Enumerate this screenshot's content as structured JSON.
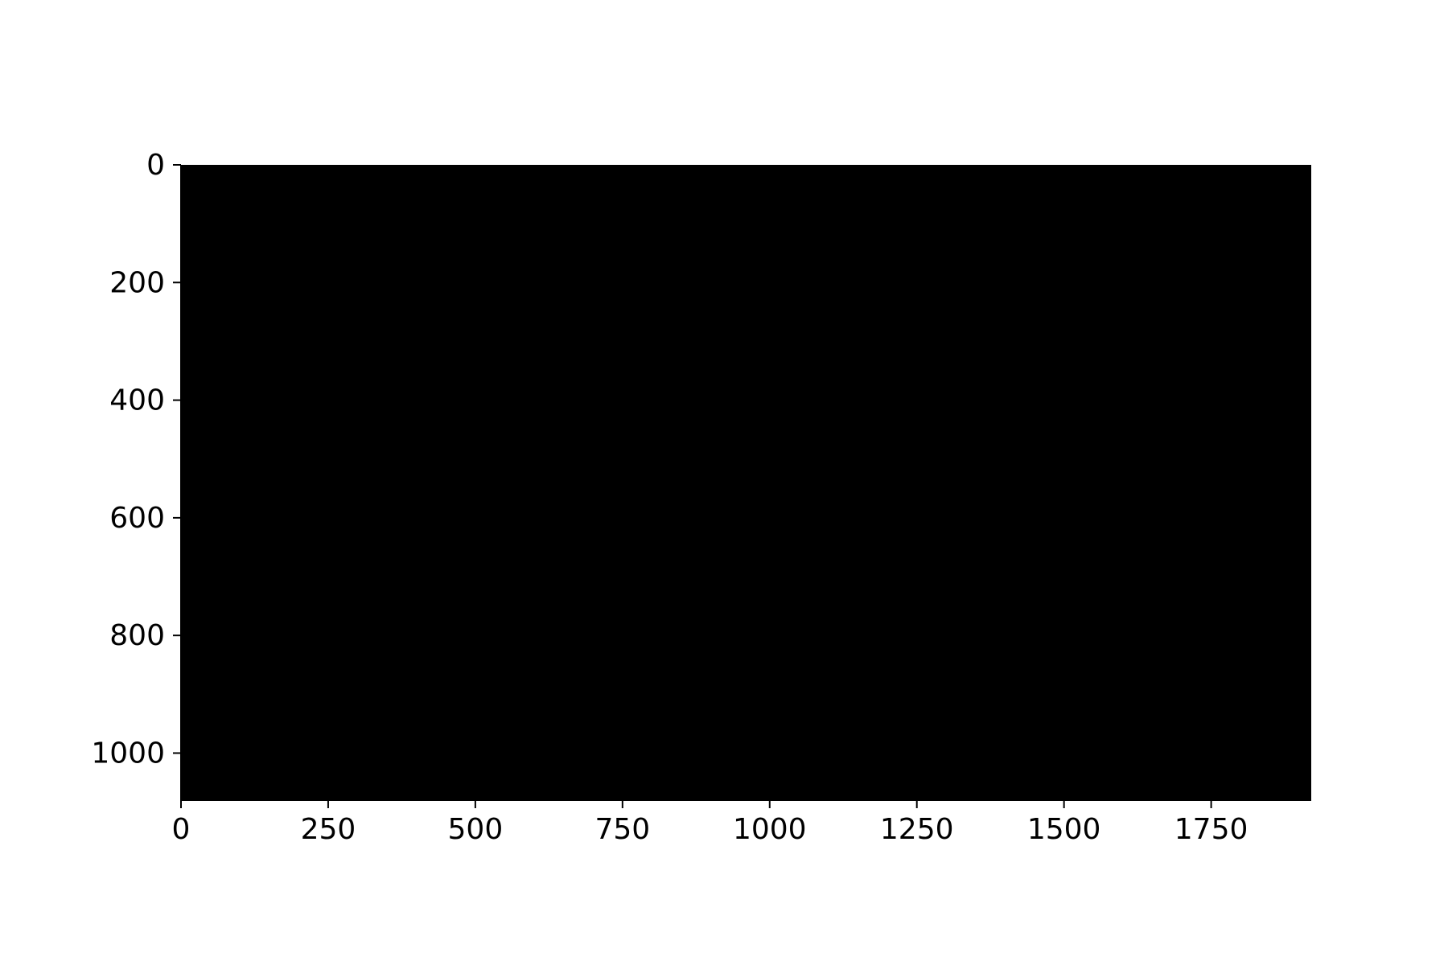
{
  "chart_data": {
    "type": "heatmap",
    "image": {
      "width": 1920,
      "height": 1080,
      "fill_color": "#000000",
      "description_value": "uniform"
    },
    "xlim": [
      0,
      1920
    ],
    "ylim": [
      1080,
      0
    ],
    "y_inverted": true,
    "x_ticks": [
      0,
      250,
      500,
      750,
      1000,
      1250,
      1500,
      1750
    ],
    "x_tick_labels": [
      "0",
      "250",
      "500",
      "750",
      "1000",
      "1250",
      "1500",
      "1750"
    ],
    "y_ticks": [
      0,
      200,
      400,
      600,
      800,
      1000
    ],
    "y_tick_labels": [
      "0",
      "200",
      "400",
      "600",
      "800",
      "1000"
    ],
    "grid": false,
    "title": "",
    "xlabel": "",
    "ylabel": ""
  },
  "colors": {
    "image": "#000000",
    "axes": "#000000",
    "background": "#ffffff"
  }
}
